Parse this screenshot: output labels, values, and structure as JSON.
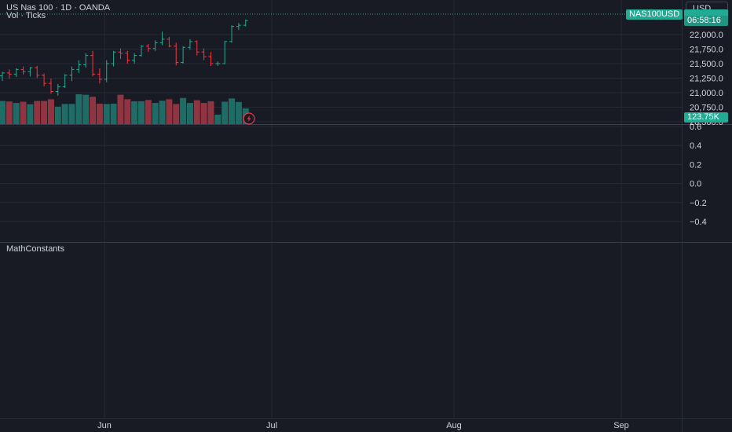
{
  "header": {
    "symbol_title": "US Nas 100 · 1D · OANDA",
    "volume_indicator": "Vol · Ticks",
    "currency": "USD"
  },
  "tags": {
    "symbol": "NAS100USD",
    "countdown": "06:58:16",
    "volume": "123.75K"
  },
  "panes": {
    "lower_indicator": "MathConstants"
  },
  "colors": {
    "background": "#181b24",
    "grid": "#262a36",
    "up": "#22ab94",
    "down": "#f23645",
    "up_volume": "#1f6b65",
    "down_volume": "#8f3440",
    "axis_text": "#d1d4dc"
  },
  "chart_data": [
    {
      "type": "candlestick",
      "name": "price",
      "y_ticks": [
        "20,500.0",
        "20,750.0",
        "21,000.0",
        "21,250.0",
        "21,500.0",
        "21,750.0",
        "22,000.0"
      ],
      "ylim": [
        20480,
        22280
      ],
      "x_ticks": [
        "Jun",
        "Jul",
        "Aug",
        "Sep"
      ],
      "candles": [
        {
          "o": 21290,
          "h": 21360,
          "l": 21200,
          "c": 21340
        },
        {
          "o": 21340,
          "h": 21400,
          "l": 21240,
          "c": 21320
        },
        {
          "o": 21320,
          "h": 21420,
          "l": 21270,
          "c": 21400
        },
        {
          "o": 21400,
          "h": 21450,
          "l": 21310,
          "c": 21360
        },
        {
          "o": 21360,
          "h": 21440,
          "l": 21280,
          "c": 21430
        },
        {
          "o": 21430,
          "h": 21460,
          "l": 21250,
          "c": 21300
        },
        {
          "o": 21300,
          "h": 21330,
          "l": 21110,
          "c": 21160
        },
        {
          "o": 21160,
          "h": 21240,
          "l": 20980,
          "c": 21020
        },
        {
          "o": 21020,
          "h": 21150,
          "l": 20950,
          "c": 21100
        },
        {
          "o": 21100,
          "h": 21320,
          "l": 21080,
          "c": 21300
        },
        {
          "o": 21300,
          "h": 21450,
          "l": 21200,
          "c": 21400
        },
        {
          "o": 21400,
          "h": 21560,
          "l": 21340,
          "c": 21480
        },
        {
          "o": 21480,
          "h": 21680,
          "l": 21430,
          "c": 21640
        },
        {
          "o": 21640,
          "h": 21720,
          "l": 21280,
          "c": 21320
        },
        {
          "o": 21320,
          "h": 21420,
          "l": 21160,
          "c": 21230
        },
        {
          "o": 21230,
          "h": 21560,
          "l": 21180,
          "c": 21500
        },
        {
          "o": 21500,
          "h": 21720,
          "l": 21450,
          "c": 21700
        },
        {
          "o": 21700,
          "h": 21760,
          "l": 21580,
          "c": 21680
        },
        {
          "o": 21680,
          "h": 21720,
          "l": 21500,
          "c": 21560
        },
        {
          "o": 21560,
          "h": 21680,
          "l": 21500,
          "c": 21640
        },
        {
          "o": 21640,
          "h": 21820,
          "l": 21620,
          "c": 21800
        },
        {
          "o": 21800,
          "h": 21840,
          "l": 21700,
          "c": 21760
        },
        {
          "o": 21760,
          "h": 21900,
          "l": 21720,
          "c": 21860
        },
        {
          "o": 21860,
          "h": 22050,
          "l": 21820,
          "c": 21920
        },
        {
          "o": 21920,
          "h": 21960,
          "l": 21780,
          "c": 21800
        },
        {
          "o": 21800,
          "h": 21860,
          "l": 21470,
          "c": 21520
        },
        {
          "o": 21520,
          "h": 21800,
          "l": 21500,
          "c": 21780
        },
        {
          "o": 21780,
          "h": 21920,
          "l": 21740,
          "c": 21880
        },
        {
          "o": 21880,
          "h": 21900,
          "l": 21640,
          "c": 21700
        },
        {
          "o": 21700,
          "h": 21760,
          "l": 21560,
          "c": 21620
        },
        {
          "o": 21620,
          "h": 21700,
          "l": 21460,
          "c": 21500
        },
        {
          "o": 21500,
          "h": 21540,
          "l": 21460,
          "c": 21500
        },
        {
          "o": 21500,
          "h": 21890,
          "l": 21490,
          "c": 21880
        },
        {
          "o": 21880,
          "h": 22160,
          "l": 21860,
          "c": 22140
        },
        {
          "o": 22140,
          "h": 22200,
          "l": 22080,
          "c": 22160
        },
        {
          "o": 22160,
          "h": 22260,
          "l": 22140,
          "c": 22240
        }
      ]
    },
    {
      "type": "bar",
      "name": "volume",
      "values": [
        93,
        91,
        85,
        90,
        80,
        93,
        93,
        100,
        70,
        81,
        81,
        120,
        118,
        110,
        82,
        81,
        82,
        118,
        100,
        92,
        92,
        97,
        85,
        94,
        100,
        81,
        105,
        85,
        96,
        85,
        92,
        38,
        90,
        103,
        89,
        63
      ]
    },
    {
      "type": "line",
      "name": "MathConstants",
      "y_ticks": [
        "0.6",
        "0.4",
        "0.2",
        "0.0",
        "−0.2",
        "−0.4"
      ],
      "ylim": [
        -0.6,
        0.65
      ],
      "values": []
    }
  ]
}
